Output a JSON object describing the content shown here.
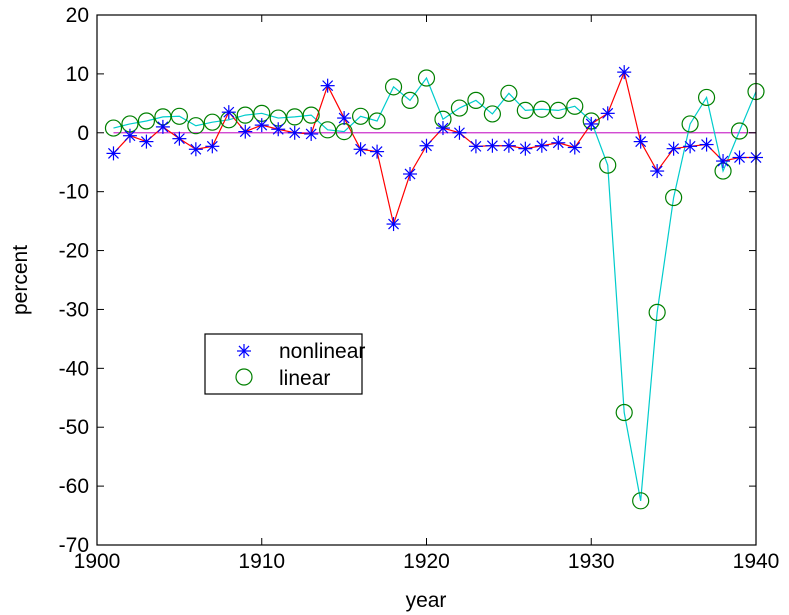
{
  "chart_data": {
    "type": "line",
    "xlabel": "year",
    "ylabel": "percent",
    "xlim": [
      1900,
      1940
    ],
    "ylim": [
      -70,
      20
    ],
    "xticks": [
      1900,
      1910,
      1920,
      1930,
      1940
    ],
    "yticks": [
      20,
      10,
      0,
      -10,
      -20,
      -30,
      -40,
      -50,
      -60,
      -70
    ],
    "grid": false,
    "legend_position": "center-left",
    "reference_line": {
      "y": 0,
      "color": "#cc33cc"
    },
    "series": [
      {
        "name": "nonlinear",
        "marker": "asterisk",
        "marker_color": "#0000ff",
        "line_color": "#ff0000",
        "x": [
          1901,
          1902,
          1903,
          1904,
          1905,
          1906,
          1907,
          1908,
          1909,
          1910,
          1911,
          1912,
          1913,
          1914,
          1915,
          1916,
          1917,
          1918,
          1919,
          1920,
          1921,
          1922,
          1923,
          1924,
          1925,
          1926,
          1927,
          1928,
          1929,
          1930,
          1931,
          1932,
          1933,
          1934,
          1935,
          1936,
          1937,
          1938,
          1939,
          1940
        ],
        "y": [
          -3.5,
          -0.5,
          -1.5,
          1.0,
          -1.0,
          -2.8,
          -2.3,
          3.5,
          0.2,
          1.3,
          0.6,
          0.0,
          -0.2,
          8.0,
          2.5,
          -2.8,
          -3.2,
          -15.5,
          -7.0,
          -2.2,
          0.8,
          0.0,
          -2.3,
          -2.2,
          -2.2,
          -2.7,
          -2.2,
          -1.7,
          -2.5,
          1.5,
          3.3,
          10.3,
          -1.5,
          -6.5,
          -2.7,
          -2.3,
          -2.0,
          -4.8,
          -4.2,
          -4.2
        ]
      },
      {
        "name": "linear",
        "marker": "circle",
        "marker_color": "#008000",
        "line_color": "#00cccc",
        "x": [
          1901,
          1902,
          1903,
          1904,
          1905,
          1906,
          1907,
          1908,
          1909,
          1910,
          1911,
          1912,
          1913,
          1914,
          1915,
          1916,
          1917,
          1918,
          1919,
          1920,
          1921,
          1922,
          1923,
          1924,
          1925,
          1926,
          1927,
          1928,
          1929,
          1930,
          1931,
          1932,
          1933,
          1934,
          1935,
          1936,
          1937,
          1938,
          1939,
          1940
        ],
        "y": [
          0.8,
          1.5,
          2.0,
          2.7,
          2.8,
          1.2,
          1.8,
          2.2,
          3.0,
          3.3,
          2.5,
          2.7,
          3.0,
          0.5,
          0.2,
          2.8,
          2.0,
          7.8,
          5.5,
          9.3,
          2.3,
          4.2,
          5.5,
          3.2,
          6.7,
          3.8,
          4.0,
          3.8,
          4.5,
          2.0,
          -5.5,
          -47.5,
          -62.5,
          -30.5,
          -11.0,
          1.5,
          6.0,
          -6.5,
          0.3,
          7.0
        ]
      }
    ]
  }
}
